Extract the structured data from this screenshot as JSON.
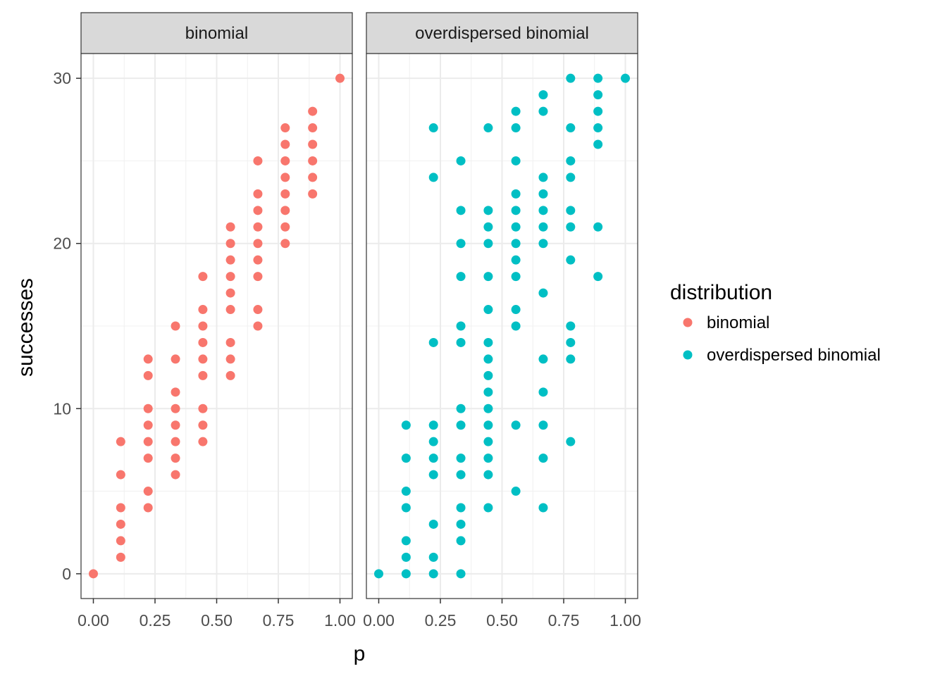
{
  "chart_data": {
    "type": "scatter",
    "xlabel": "p",
    "ylabel": "successes",
    "xlim": [
      -0.05,
      1.05
    ],
    "ylim": [
      -1.5,
      31.5
    ],
    "x_ticks": [
      0,
      0.25,
      0.5,
      0.75,
      1
    ],
    "x_tick_labels": [
      "0.00",
      "0.25",
      "0.50",
      "0.75",
      "1.00"
    ],
    "y_ticks": [
      0,
      10,
      20,
      30
    ],
    "y_tick_labels": [
      "0",
      "10",
      "20",
      "30"
    ],
    "grid": true,
    "legend": {
      "title": "distribution",
      "placement": "right",
      "entries": [
        {
          "label": "binomial",
          "color": "#F8766D"
        },
        {
          "label": "overdispersed binomial",
          "color": "#00BFC4"
        }
      ]
    },
    "panels": [
      {
        "strip": "binomial",
        "color": "#F8766D",
        "points": [
          [
            0,
            0
          ],
          [
            0.111,
            1
          ],
          [
            0.111,
            2
          ],
          [
            0.111,
            3
          ],
          [
            0.111,
            4
          ],
          [
            0.111,
            6
          ],
          [
            0.111,
            8
          ],
          [
            0.222,
            4
          ],
          [
            0.222,
            5
          ],
          [
            0.222,
            7
          ],
          [
            0.222,
            8
          ],
          [
            0.222,
            9
          ],
          [
            0.222,
            10
          ],
          [
            0.222,
            12
          ],
          [
            0.222,
            13
          ],
          [
            0.333,
            6
          ],
          [
            0.333,
            7
          ],
          [
            0.333,
            8
          ],
          [
            0.333,
            9
          ],
          [
            0.333,
            10
          ],
          [
            0.333,
            11
          ],
          [
            0.333,
            13
          ],
          [
            0.333,
            15
          ],
          [
            0.444,
            8
          ],
          [
            0.444,
            9
          ],
          [
            0.444,
            10
          ],
          [
            0.444,
            12
          ],
          [
            0.444,
            13
          ],
          [
            0.444,
            14
          ],
          [
            0.444,
            15
          ],
          [
            0.444,
            16
          ],
          [
            0.444,
            18
          ],
          [
            0.556,
            12
          ],
          [
            0.556,
            13
          ],
          [
            0.556,
            14
          ],
          [
            0.556,
            16
          ],
          [
            0.556,
            17
          ],
          [
            0.556,
            18
          ],
          [
            0.556,
            19
          ],
          [
            0.556,
            20
          ],
          [
            0.556,
            21
          ],
          [
            0.667,
            15
          ],
          [
            0.667,
            16
          ],
          [
            0.667,
            18
          ],
          [
            0.667,
            19
          ],
          [
            0.667,
            20
          ],
          [
            0.667,
            21
          ],
          [
            0.667,
            22
          ],
          [
            0.667,
            23
          ],
          [
            0.667,
            25
          ],
          [
            0.778,
            20
          ],
          [
            0.778,
            21
          ],
          [
            0.778,
            22
          ],
          [
            0.778,
            23
          ],
          [
            0.778,
            24
          ],
          [
            0.778,
            25
          ],
          [
            0.778,
            26
          ],
          [
            0.778,
            27
          ],
          [
            0.889,
            23
          ],
          [
            0.889,
            24
          ],
          [
            0.889,
            25
          ],
          [
            0.889,
            26
          ],
          [
            0.889,
            27
          ],
          [
            0.889,
            28
          ],
          [
            1,
            30
          ]
        ]
      },
      {
        "strip": "overdispersed binomial",
        "color": "#00BFC4",
        "points": [
          [
            0,
            0
          ],
          [
            0.111,
            0
          ],
          [
            0.111,
            1
          ],
          [
            0.111,
            2
          ],
          [
            0.111,
            4
          ],
          [
            0.111,
            5
          ],
          [
            0.111,
            7
          ],
          [
            0.111,
            9
          ],
          [
            0.222,
            0
          ],
          [
            0.222,
            1
          ],
          [
            0.222,
            3
          ],
          [
            0.222,
            6
          ],
          [
            0.222,
            7
          ],
          [
            0.222,
            8
          ],
          [
            0.222,
            9
          ],
          [
            0.222,
            14
          ],
          [
            0.222,
            24
          ],
          [
            0.222,
            27
          ],
          [
            0.333,
            0
          ],
          [
            0.333,
            2
          ],
          [
            0.333,
            3
          ],
          [
            0.333,
            4
          ],
          [
            0.333,
            6
          ],
          [
            0.333,
            7
          ],
          [
            0.333,
            9
          ],
          [
            0.333,
            10
          ],
          [
            0.333,
            14
          ],
          [
            0.333,
            15
          ],
          [
            0.333,
            18
          ],
          [
            0.333,
            20
          ],
          [
            0.333,
            22
          ],
          [
            0.333,
            25
          ],
          [
            0.444,
            4
          ],
          [
            0.444,
            6
          ],
          [
            0.444,
            7
          ],
          [
            0.444,
            8
          ],
          [
            0.444,
            9
          ],
          [
            0.444,
            10
          ],
          [
            0.444,
            11
          ],
          [
            0.444,
            12
          ],
          [
            0.444,
            13
          ],
          [
            0.444,
            14
          ],
          [
            0.444,
            16
          ],
          [
            0.444,
            18
          ],
          [
            0.444,
            20
          ],
          [
            0.444,
            21
          ],
          [
            0.444,
            22
          ],
          [
            0.444,
            27
          ],
          [
            0.556,
            5
          ],
          [
            0.556,
            9
          ],
          [
            0.556,
            15
          ],
          [
            0.556,
            16
          ],
          [
            0.556,
            18
          ],
          [
            0.556,
            19
          ],
          [
            0.556,
            20
          ],
          [
            0.556,
            21
          ],
          [
            0.556,
            22
          ],
          [
            0.556,
            23
          ],
          [
            0.556,
            25
          ],
          [
            0.556,
            27
          ],
          [
            0.556,
            28
          ],
          [
            0.667,
            4
          ],
          [
            0.667,
            7
          ],
          [
            0.667,
            9
          ],
          [
            0.667,
            11
          ],
          [
            0.667,
            13
          ],
          [
            0.667,
            17
          ],
          [
            0.667,
            20
          ],
          [
            0.667,
            21
          ],
          [
            0.667,
            22
          ],
          [
            0.667,
            23
          ],
          [
            0.667,
            24
          ],
          [
            0.667,
            28
          ],
          [
            0.667,
            29
          ],
          [
            0.778,
            8
          ],
          [
            0.778,
            13
          ],
          [
            0.778,
            14
          ],
          [
            0.778,
            15
          ],
          [
            0.778,
            19
          ],
          [
            0.778,
            21
          ],
          [
            0.778,
            22
          ],
          [
            0.778,
            24
          ],
          [
            0.778,
            25
          ],
          [
            0.778,
            27
          ],
          [
            0.778,
            30
          ],
          [
            0.889,
            18
          ],
          [
            0.889,
            21
          ],
          [
            0.889,
            26
          ],
          [
            0.889,
            27
          ],
          [
            0.889,
            28
          ],
          [
            0.889,
            29
          ],
          [
            0.889,
            30
          ],
          [
            1,
            30
          ]
        ]
      }
    ]
  }
}
